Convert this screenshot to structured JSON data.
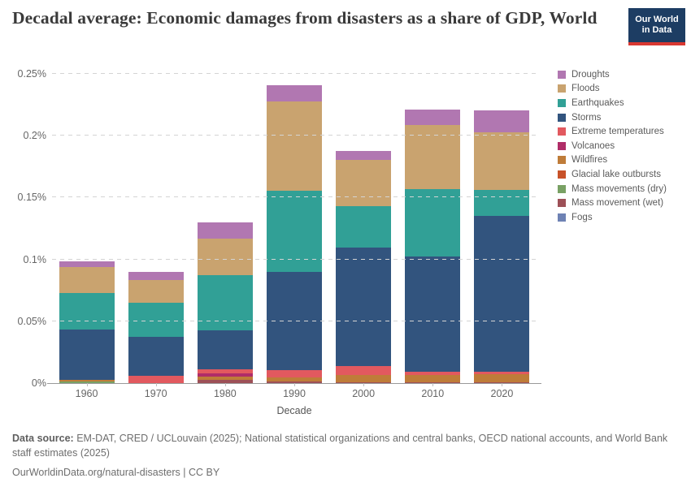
{
  "header": {
    "title": "Decadal average: Economic damages from disasters as a share of GDP, World"
  },
  "logo": {
    "line1": "Our World",
    "line2": "in Data",
    "bg_color": "#1d3d63",
    "accent_color": "#d93831"
  },
  "chart_data": {
    "type": "bar",
    "stacked": true,
    "title": "Decadal average: Economic damages from disasters as a share of GDP, World",
    "xlabel": "Decade",
    "ylabel": "",
    "unit": "% of GDP",
    "ylim": [
      0,
      0.25
    ],
    "grid": true,
    "legend_position": "right",
    "categories": [
      "1960",
      "1970",
      "1980",
      "1990",
      "2000",
      "2010",
      "2020"
    ],
    "yticks": [
      {
        "value": 0,
        "label": "0%"
      },
      {
        "value": 0.05,
        "label": "0.05%"
      },
      {
        "value": 0.1,
        "label": "0.1%"
      },
      {
        "value": 0.15,
        "label": "0.15%"
      },
      {
        "value": 0.2,
        "label": "0.2%"
      },
      {
        "value": 0.25,
        "label": "0.25%"
      }
    ],
    "series_bottom_to_top": [
      {
        "name": "Fogs",
        "color": "#6e82b4",
        "values": [
          0,
          0,
          0,
          0,
          0,
          0,
          0
        ]
      },
      {
        "name": "Mass movement (wet)",
        "color": "#9d5057",
        "values": [
          0,
          0,
          0.0024,
          0.0016,
          0.0008,
          0.0008,
          0.0005
        ]
      },
      {
        "name": "Mass movements (dry)",
        "color": "#79a164",
        "values": [
          0.0014,
          0,
          0,
          0,
          0,
          0,
          0
        ]
      },
      {
        "name": "Glacial lake outbursts",
        "color": "#c85229",
        "values": [
          0,
          0,
          0,
          0,
          0,
          0,
          0
        ]
      },
      {
        "name": "Wildfires",
        "color": "#bf7c39",
        "values": [
          0.0013,
          0,
          0.0028,
          0.0031,
          0.0057,
          0.006,
          0.0067
        ]
      },
      {
        "name": "Volcanoes",
        "color": "#b02d68",
        "values": [
          0,
          0,
          0.0026,
          0,
          0,
          0,
          0
        ]
      },
      {
        "name": "Extreme temperatures",
        "color": "#e2595f",
        "values": [
          0,
          0.0057,
          0.0033,
          0.0061,
          0.007,
          0.0023,
          0.002
        ]
      },
      {
        "name": "Storms",
        "color": "#32547e",
        "values": [
          0.0405,
          0.0315,
          0.0313,
          0.0788,
          0.096,
          0.093,
          0.1259
        ]
      },
      {
        "name": "Earthquakes",
        "color": "#31a096",
        "values": [
          0.0295,
          0.028,
          0.0446,
          0.0657,
          0.0335,
          0.055,
          0.0209
        ]
      },
      {
        "name": "Floods",
        "color": "#c9a36f",
        "values": [
          0.0214,
          0.018,
          0.0296,
          0.0722,
          0.0376,
          0.0515,
          0.0466
        ]
      },
      {
        "name": "Droughts",
        "color": "#b177b1",
        "values": [
          0.0041,
          0.0068,
          0.0131,
          0.0134,
          0.007,
          0.0123,
          0.0176
        ]
      }
    ],
    "legend": [
      {
        "label": "Droughts",
        "color": "#b177b1"
      },
      {
        "label": "Floods",
        "color": "#c9a36f"
      },
      {
        "label": "Earthquakes",
        "color": "#31a096"
      },
      {
        "label": "Storms",
        "color": "#32547e"
      },
      {
        "label": "Extreme temperatures",
        "color": "#e2595f"
      },
      {
        "label": "Volcanoes",
        "color": "#b02d68"
      },
      {
        "label": "Wildfires",
        "color": "#bf7c39"
      },
      {
        "label": "Glacial lake outbursts",
        "color": "#c85229"
      },
      {
        "label": "Mass movements (dry)",
        "color": "#79a164"
      },
      {
        "label": "Mass movement (wet)",
        "color": "#9d5057"
      },
      {
        "label": "Fogs",
        "color": "#6e82b4"
      }
    ]
  },
  "footer": {
    "source_label": "Data source:",
    "source_text": " EM-DAT, CRED / UCLouvain (2025); National statistical organizations and central banks, OECD national accounts, and World Bank staff estimates (2025)",
    "cc_line": "OurWorldinData.org/natural-disasters | CC BY"
  }
}
